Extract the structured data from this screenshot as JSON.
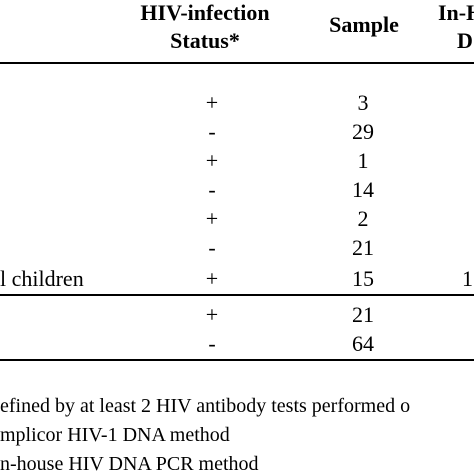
{
  "table": {
    "headers": {
      "hiv_status_line1": "HIV-infection",
      "hiv_status_line2": "Status*",
      "sample": "Sample",
      "in_house_line1": "In-H",
      "in_house_line2": "D"
    },
    "rows": [
      {
        "label": "",
        "status": "+",
        "sample": "3",
        "in_house": ""
      },
      {
        "label": "",
        "status": "-",
        "sample": "29",
        "in_house": ""
      },
      {
        "label": "",
        "status": "+",
        "sample": "1",
        "in_house": ""
      },
      {
        "label": "",
        "status": "-",
        "sample": "14",
        "in_house": ""
      },
      {
        "label": "",
        "status": "+",
        "sample": "2",
        "in_house": ""
      },
      {
        "label": "",
        "status": "-",
        "sample": "21",
        "in_house": ""
      },
      {
        "label": "l children",
        "status": "+",
        "sample": "15",
        "in_house": "1"
      },
      {
        "label": "",
        "status": "+",
        "sample": "21",
        "in_house": ""
      },
      {
        "label": "",
        "status": "-",
        "sample": "64",
        "in_house": ""
      }
    ]
  },
  "footnotes": [
    "efined by at least 2 HIV antibody tests performed o",
    "mplicor HIV-1 DNA method",
    "n-house HIV DNA PCR method"
  ]
}
